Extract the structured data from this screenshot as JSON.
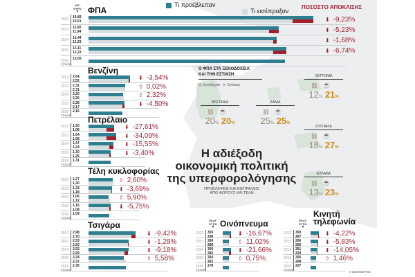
{
  "legend": {
    "planned": "Τι προέβλεπαν",
    "collected": "Τι εισέπραξαν",
    "deviation": "ΠΟΣΟΣΤΟ ΑΠΟΚΛΙΣΗΣ"
  },
  "colors": {
    "planned": "#2f7f90",
    "collected": "#d6dde1",
    "shortfall": "#a31f2b",
    "negative": "#9e2232",
    "hotel": "#9a8870",
    "restaurant": "#d08a1a"
  },
  "chart_data": [
    {
      "type": "bar",
      "title": "ΦΠΑ",
      "unit": "ΔΙΣ. ΕΥΡΩ",
      "target_label": "ΣΤΟΧΟΣ",
      "rows": [
        {
          "year": "2012",
          "planned": "14,89",
          "collected": "13,51",
          "pct": "-9,23%"
        },
        {
          "year": "2013",
          "planned": "12,60",
          "collected": "11,94",
          "pct": "-5,23%"
        },
        {
          "year": "2014",
          "planned": "12,44",
          "collected": "12,23",
          "pct": "-1,68%"
        },
        {
          "year": "2015",
          "planned": "13,11",
          "collected": "12,23",
          "pct": "-6,74%"
        },
        {
          "year": "2016",
          "planned": "13,00"
        }
      ]
    },
    {
      "type": "bar",
      "title": "Βενζίνη",
      "unit": "",
      "target_label": "ΣΤΟΧΟΣ",
      "rows": [
        {
          "year": "2012",
          "planned": "2,64",
          "collected": "2,55",
          "pct": "-3,54%"
        },
        {
          "year": "2013",
          "planned": "2,31",
          "collected": "2,31",
          "pct": "0,02%"
        },
        {
          "year": "2014",
          "planned": "2,20",
          "collected": "2,25",
          "pct": "2,32%"
        },
        {
          "year": "2015",
          "planned": "2,28",
          "collected": "2,17",
          "pct": "-4,50%"
        },
        {
          "year": "2016",
          "planned": "2,16"
        }
      ]
    },
    {
      "type": "bar",
      "title": "Πετρέλαιο",
      "unit": "",
      "target_label": "ΣΤΟΧΟΣ",
      "rows": [
        {
          "year": "2012",
          "planned": "1,50",
          "collected": "1,08",
          "pct": "-27,61%"
        },
        {
          "year": "2013",
          "planned": "1,64",
          "collected": "1,08",
          "pct": "-34,09%"
        },
        {
          "year": "2014",
          "planned": "1,47",
          "collected": "1,24",
          "pct": "-15,55%"
        },
        {
          "year": "2015",
          "planned": "1,30",
          "collected": "1,25",
          "pct": "-3,40%"
        },
        {
          "year": "2016",
          "planned": "1,31"
        }
      ]
    },
    {
      "type": "bar",
      "title": "Τέλη κυκλοφορίας",
      "unit": "",
      "target_label": "ΣΤΟΧΟΣ",
      "rows": [
        {
          "year": "2012",
          "planned": "1,27",
          "collected": "1,30",
          "pct": "2,60%"
        },
        {
          "year": "2013",
          "planned": "1,23",
          "collected": "1,18",
          "pct": "-3,69%"
        },
        {
          "year": "2014",
          "planned": "1,06",
          "collected": "1,12",
          "pct": "5,90%"
        },
        {
          "year": "2015",
          "planned": "1,16",
          "collected": "1,09",
          "pct": "-5,75%"
        },
        {
          "year": "2016",
          "planned": "1,09"
        }
      ]
    },
    {
      "type": "bar",
      "title": "Τσιγάρα",
      "unit": "",
      "target_label": "ΣΤΟΧΟΣ",
      "rows": [
        {
          "year": "2012",
          "planned": "2,98",
          "collected": "2,70",
          "pct": "-9,42%"
        },
        {
          "year": "2013",
          "planned": "2,53",
          "collected": "2,50",
          "pct": "-1,28%"
        },
        {
          "year": "2014",
          "planned": "2,52",
          "collected": "2,29",
          "pct": "-9,18%"
        },
        {
          "year": "2015",
          "planned": "2,24",
          "collected": "2,37",
          "pct": "5,58%"
        },
        {
          "year": "2016",
          "planned": "2,36"
        }
      ]
    },
    {
      "type": "bar",
      "title": "Οινόπνευμα",
      "unit": "ΕΚΑΤ. ΕΥΡΩ",
      "target_label": "ΣΤΟΧΟΣ",
      "rows": [
        {
          "year": "2012",
          "planned": "355",
          "collected": "296",
          "pct": "-16,67%"
        },
        {
          "year": "2013",
          "planned": "260",
          "collected": "289",
          "pct": "11,02%"
        },
        {
          "year": "2014",
          "planned": "360",
          "collected": "282",
          "pct": "-21,66%"
        },
        {
          "year": "2015",
          "planned": "260",
          "collected": "262",
          "pct": "0,75%"
        },
        {
          "year": "2016",
          "planned": "278"
        }
      ]
    },
    {
      "type": "bar",
      "title": "Κινητή τηλεφωνία",
      "unit": "ΕΚΑΤ. ΕΥΡΩ",
      "target_label": "ΣΤΟΧΟΣ",
      "rows": [
        {
          "year": "2012",
          "planned": "300",
          "collected": "287",
          "pct": "-4,22%"
        },
        {
          "year": "2013",
          "planned": "266",
          "collected": "250",
          "pct": "-5,83%"
        },
        {
          "year": "2014",
          "planned": "261",
          "collected": "224",
          "pct": "-14,05%"
        },
        {
          "year": "2015",
          "planned": "205",
          "collected": "208",
          "pct": "1,46%"
        },
        {
          "year": "2016",
          "planned": "207"
        }
      ]
    }
  ],
  "vat_map": {
    "title_line1": "Ο ΦΠΑ ΣΤΑ ΞΕΝΟΔΟΧΕΙΑ",
    "title_line2": "ΚΑΙ ΤΗΝ ΕΣΤΙΑΣΗ",
    "hotel_label": "Ξενοδοχεία",
    "restaurant_label": "Εστίαση",
    "countries": [
      {
        "name": "ΒΡΕΤΑΝΙΑ",
        "hotel": "20",
        "restaurant": "20"
      },
      {
        "name": "ΔΑΝΙΑ",
        "hotel": "25",
        "restaurant": "25"
      },
      {
        "name": "ΛΕΤΤΟΝΙΑ",
        "hotel": "12",
        "restaurant": "21"
      },
      {
        "name": "ΟΥΓΓΑΡΙΑ",
        "hotel": "18",
        "restaurant": "27"
      },
      {
        "name": "ΕΛΛΑΔΑ",
        "hotel": "13",
        "restaurant": "23"
      }
    ],
    "percent_sign": "%"
  },
  "headline": {
    "line1": "Η αδιέξοδη",
    "line2": "οικονομική πολιτική",
    "line3": "της υπερφορολόγησης",
    "sub1": "ΠΡΟΒΛΕΨΕΙΣ ΚΑΙ ΕΙΣΠΡΑΞΕΙΣ",
    "sub2": "ΑΠΟ ΦΟΡΟΥΣ ΚΑΙ ΤΕΛΗ"
  },
  "credit": "Η ΚΑΘΗΜΕΡΙΝΗ"
}
